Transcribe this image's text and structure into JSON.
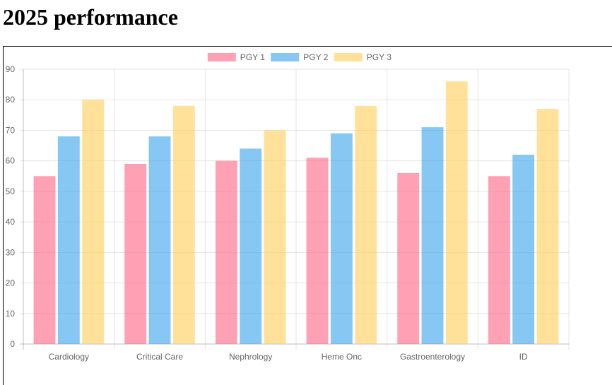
{
  "page": {
    "title": "2025 performance"
  },
  "chart_data": {
    "type": "bar",
    "categories": [
      "Cardiology",
      "Critical Care",
      "Nephrology",
      "Heme Onc",
      "Gastroenterology",
      "ID"
    ],
    "series": [
      {
        "name": "PGY 1",
        "color": "#ff6384",
        "values": [
          55,
          59,
          60,
          61,
          56,
          55
        ]
      },
      {
        "name": "PGY 2",
        "color": "#36a2eb",
        "values": [
          68,
          68,
          64,
          69,
          71,
          62
        ]
      },
      {
        "name": "PGY 3",
        "color": "#ffcd56",
        "values": [
          80,
          78,
          70,
          78,
          86,
          77
        ]
      }
    ],
    "ylim": [
      0,
      90
    ],
    "yticks": [
      0,
      10,
      20,
      30,
      40,
      50,
      60,
      70,
      80,
      90
    ],
    "grid": true,
    "legend": "top"
  }
}
